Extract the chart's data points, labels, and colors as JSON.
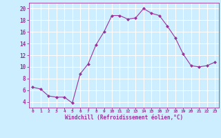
{
  "x": [
    0,
    1,
    2,
    3,
    4,
    5,
    6,
    7,
    8,
    9,
    10,
    11,
    12,
    13,
    14,
    15,
    16,
    17,
    18,
    19,
    20,
    21,
    22,
    23
  ],
  "y": [
    6.5,
    6.2,
    5.0,
    4.8,
    4.8,
    3.8,
    8.8,
    10.5,
    13.8,
    16.0,
    18.8,
    18.8,
    18.2,
    18.4,
    20.0,
    19.2,
    18.8,
    17.0,
    15.0,
    12.2,
    10.2,
    10.0,
    10.2,
    10.8
  ],
  "line_color": "#993399",
  "marker": "D",
  "marker_size": 2,
  "bg_color": "#cceeff",
  "grid_color": "#ffffff",
  "xlabel": "Windchill (Refroidissement éolien,°C)",
  "xlabel_color": "#993399",
  "tick_color": "#993399",
  "ylim": [
    3,
    21
  ],
  "yticks": [
    4,
    6,
    8,
    10,
    12,
    14,
    16,
    18,
    20
  ],
  "xlim": [
    -0.5,
    23.5
  ],
  "xticks": [
    0,
    1,
    2,
    3,
    4,
    5,
    6,
    7,
    8,
    9,
    10,
    11,
    12,
    13,
    14,
    15,
    16,
    17,
    18,
    19,
    20,
    21,
    22,
    23
  ]
}
